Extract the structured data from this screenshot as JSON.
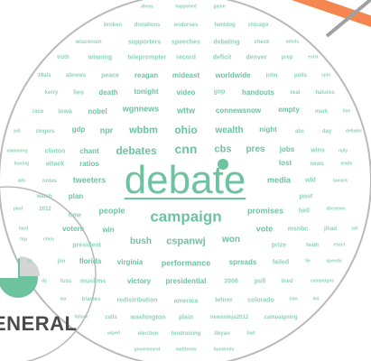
{
  "colors": {
    "word": "#6dc3a0",
    "word_light": "#8fd2b6",
    "circle_stroke": "#b9b9b9",
    "pie_fill": "#6dc3a0",
    "pie_gap": "#d4d4d4",
    "accent_orange": "#f5864f",
    "accent_gray": "#a0a0a0",
    "label_text": "#4a4a4a"
  },
  "center_word": "debate",
  "section_label": "ENERAL",
  "pie_icon": "pie-chart-icon",
  "words": [
    {
      "text": "alway"
    },
    {
      "text": "happened"
    },
    {
      "text": "game"
    },
    {
      "text": "broken"
    },
    {
      "text": "donations"
    },
    {
      "text": "endorses"
    },
    {
      "text": "famblog"
    },
    {
      "text": "chicago"
    },
    {
      "text": "wisconsin"
    },
    {
      "text": "supporters"
    },
    {
      "text": "speeches"
    },
    {
      "text": "debating"
    },
    {
      "text": "check"
    },
    {
      "text": "adsits"
    },
    {
      "text": "truth"
    },
    {
      "text": "winning"
    },
    {
      "text": "teleprompter"
    },
    {
      "text": "record"
    },
    {
      "text": "deficit"
    },
    {
      "text": "denver"
    },
    {
      "text": "prep"
    },
    {
      "text": "exist"
    },
    {
      "text": "19a/s"
    },
    {
      "text": "abnews"
    },
    {
      "text": "peace"
    },
    {
      "text": "reagan"
    },
    {
      "text": "mideast"
    },
    {
      "text": "worldwide"
    },
    {
      "text": "john"
    },
    {
      "text": "polls"
    },
    {
      "text": "spin"
    },
    {
      "text": "kerry"
    },
    {
      "text": "lies"
    },
    {
      "text": "death"
    },
    {
      "text": "tonight"
    },
    {
      "text": "video"
    },
    {
      "text": "gop"
    },
    {
      "text": "handouts"
    },
    {
      "text": "real"
    },
    {
      "text": "failures"
    },
    {
      "text": "race"
    },
    {
      "text": "iowa"
    },
    {
      "text": "nobel"
    },
    {
      "text": "wgnnews"
    },
    {
      "text": "wttw"
    },
    {
      "text": "connewsnow"
    },
    {
      "text": "empty"
    },
    {
      "text": "mark"
    },
    {
      "text": "live"
    },
    {
      "text": "job"
    },
    {
      "text": "zingers"
    },
    {
      "text": "gdp"
    },
    {
      "text": "npr"
    },
    {
      "text": "wbbm"
    },
    {
      "text": "ohio"
    },
    {
      "text": "wealth"
    },
    {
      "text": "night"
    },
    {
      "text": "abc"
    },
    {
      "text": "day"
    },
    {
      "text": "debater"
    },
    {
      "text": "slamming"
    },
    {
      "text": "clinton"
    },
    {
      "text": "chant"
    },
    {
      "text": "debates"
    },
    {
      "text": "cnn"
    },
    {
      "text": "cbs"
    },
    {
      "text": "pres"
    },
    {
      "text": "jobs"
    },
    {
      "text": "wins"
    },
    {
      "text": "rally"
    },
    {
      "text": "boxing"
    },
    {
      "text": "attack"
    },
    {
      "text": "ratios"
    },
    {
      "text": "lost"
    },
    {
      "text": "news"
    },
    {
      "text": "leads"
    },
    {
      "text": "ads"
    },
    {
      "text": "notes"
    },
    {
      "text": "tweeters"
    },
    {
      "text": "media"
    },
    {
      "text": "wld"
    },
    {
      "text": "barack"
    },
    {
      "text": "watch"
    },
    {
      "text": "plan"
    },
    {
      "text": "post"
    },
    {
      "text": "paul"
    },
    {
      "text": "2012"
    },
    {
      "text": "people"
    },
    {
      "text": "campaign"
    },
    {
      "text": "promises"
    },
    {
      "text": "hell"
    },
    {
      "text": "abcnews"
    },
    {
      "text": "time"
    },
    {
      "text": "voters"
    },
    {
      "text": "win"
    },
    {
      "text": "vote"
    },
    {
      "text": "msnbc"
    },
    {
      "text": "jihad"
    },
    {
      "text": "sdr"
    },
    {
      "text": "laud"
    },
    {
      "text": "top"
    },
    {
      "text": "chris"
    },
    {
      "text": "bush"
    },
    {
      "text": "cspanwj"
    },
    {
      "text": "won"
    },
    {
      "text": "prize"
    },
    {
      "text": "team"
    },
    {
      "text": "exact"
    },
    {
      "text": "president"
    },
    {
      "text": "tix"
    },
    {
      "text": "jim"
    },
    {
      "text": "florida"
    },
    {
      "text": "virginia"
    },
    {
      "text": "performance"
    },
    {
      "text": "spreads"
    },
    {
      "text": "failed"
    },
    {
      "text": "ile"
    },
    {
      "text": "speeds"
    },
    {
      "text": "dy"
    },
    {
      "text": "tuss"
    },
    {
      "text": "muslims"
    },
    {
      "text": "victory"
    },
    {
      "text": "presidential"
    },
    {
      "text": "2008"
    },
    {
      "text": "poll"
    },
    {
      "text": "tired"
    },
    {
      "text": "campaigns"
    },
    {
      "text": "tax"
    },
    {
      "text": "blames"
    },
    {
      "text": "redistribution"
    },
    {
      "text": "america"
    },
    {
      "text": "lehrer"
    },
    {
      "text": "colorado"
    },
    {
      "text": "iran"
    },
    {
      "text": "iwi"
    },
    {
      "text": "failure"
    },
    {
      "text": "calls"
    },
    {
      "text": "washington"
    },
    {
      "text": "plain"
    },
    {
      "text": "newsninja2012"
    },
    {
      "text": "campaigning"
    },
    {
      "text": "wiped"
    },
    {
      "text": "election"
    },
    {
      "text": "fundraising"
    },
    {
      "text": "libyan"
    },
    {
      "text": "bad"
    },
    {
      "text": "government"
    },
    {
      "text": "matthews"
    },
    {
      "text": "hundreds"
    }
  ]
}
